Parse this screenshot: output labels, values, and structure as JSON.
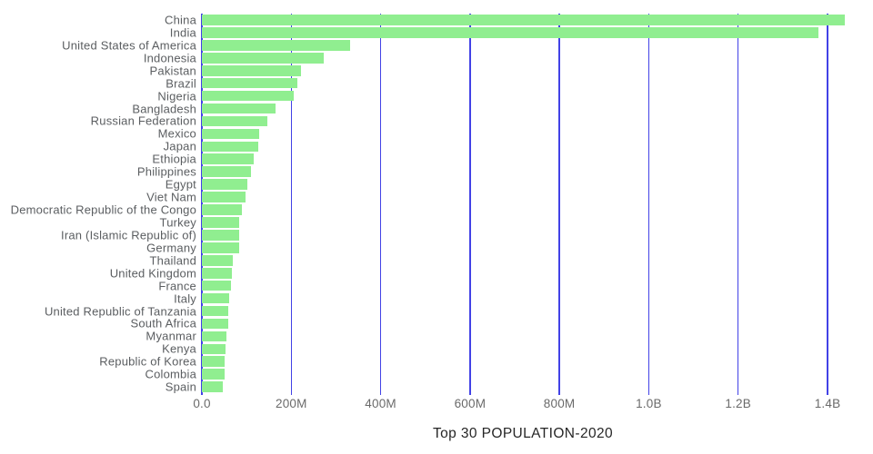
{
  "chart_data": {
    "type": "bar",
    "orientation": "horizontal",
    "title": "Top 30 POPULATION-2020",
    "categories": [
      "China",
      "India",
      "United States of America",
      "Indonesia",
      "Pakistan",
      "Brazil",
      "Nigeria",
      "Bangladesh",
      "Russian Federation",
      "Mexico",
      "Japan",
      "Ethiopia",
      "Philippines",
      "Egypt",
      "Viet Nam",
      "Democratic Republic of the Congo",
      "Turkey",
      "Iran (Islamic Republic of)",
      "Germany",
      "Thailand",
      "United Kingdom",
      "France",
      "Italy",
      "United Republic of Tanzania",
      "South Africa",
      "Myanmar",
      "Kenya",
      "Republic of Korea",
      "Colombia",
      "Spain"
    ],
    "values_millions": [
      1439.3,
      1380.0,
      331.0,
      273.5,
      220.9,
      212.6,
      206.1,
      164.7,
      145.9,
      128.9,
      126.5,
      115.0,
      109.6,
      102.3,
      97.3,
      89.6,
      84.3,
      84.0,
      83.8,
      69.8,
      67.9,
      65.3,
      60.5,
      59.7,
      59.3,
      54.4,
      53.8,
      51.3,
      50.9,
      46.8
    ],
    "x_axis": {
      "tick_labels": [
        "0.0",
        "200M",
        "400M",
        "600M",
        "800M",
        "1.0B",
        "1.2B",
        "1.4B"
      ],
      "tick_values_millions": [
        0,
        200,
        400,
        600,
        800,
        1000,
        1200,
        1400
      ],
      "range_millions": [
        0,
        1456
      ]
    },
    "grid": "vertical",
    "legend": false
  },
  "colors": {
    "bar": "#90ee90",
    "gridline": "#4242e6",
    "category_label": "#5b5e61",
    "tick_label": "#6a6a6a",
    "title": "#262626",
    "background": "#ffffff"
  }
}
